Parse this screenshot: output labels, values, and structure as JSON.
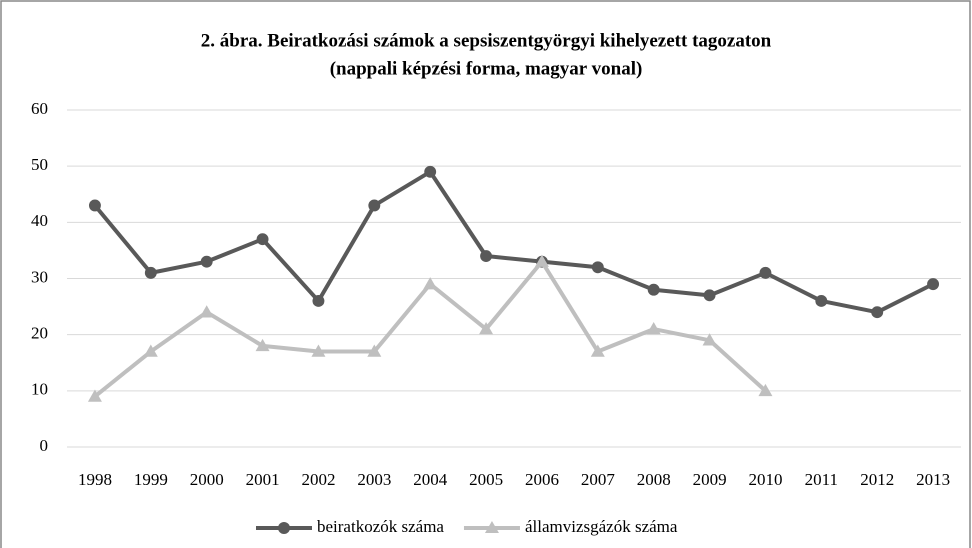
{
  "chart_data": {
    "type": "line",
    "title": [
      "2. ábra. Beiratkozási számok a sepsiszentgyörgyi kihelyezett tagozaton",
      "(nappali képzési forma, magyar vonal)"
    ],
    "categories": [
      "1998",
      "1999",
      "2000",
      "2001",
      "2002",
      "2003",
      "2004",
      "2005",
      "2006",
      "2007",
      "2008",
      "2009",
      "2010",
      "2011",
      "2012",
      "2013"
    ],
    "series": [
      {
        "name": "beiratkozók száma",
        "color": "#595959",
        "marker": "circle",
        "values": [
          43,
          31,
          33,
          37,
          26,
          43,
          49,
          34,
          33,
          32,
          28,
          27,
          31,
          26,
          24,
          29
        ]
      },
      {
        "name": "államvizsgázók száma",
        "color": "#bfbfbf",
        "marker": "triangle",
        "values": [
          9,
          17,
          24,
          18,
          17,
          17,
          29,
          21,
          33,
          17,
          21,
          19,
          10,
          null,
          null,
          null
        ]
      }
    ],
    "ylim": [
      0,
      60
    ],
    "yticks": [
      0,
      10,
      20,
      30,
      40,
      50,
      60
    ],
    "grid": true,
    "legend": "bottom"
  }
}
